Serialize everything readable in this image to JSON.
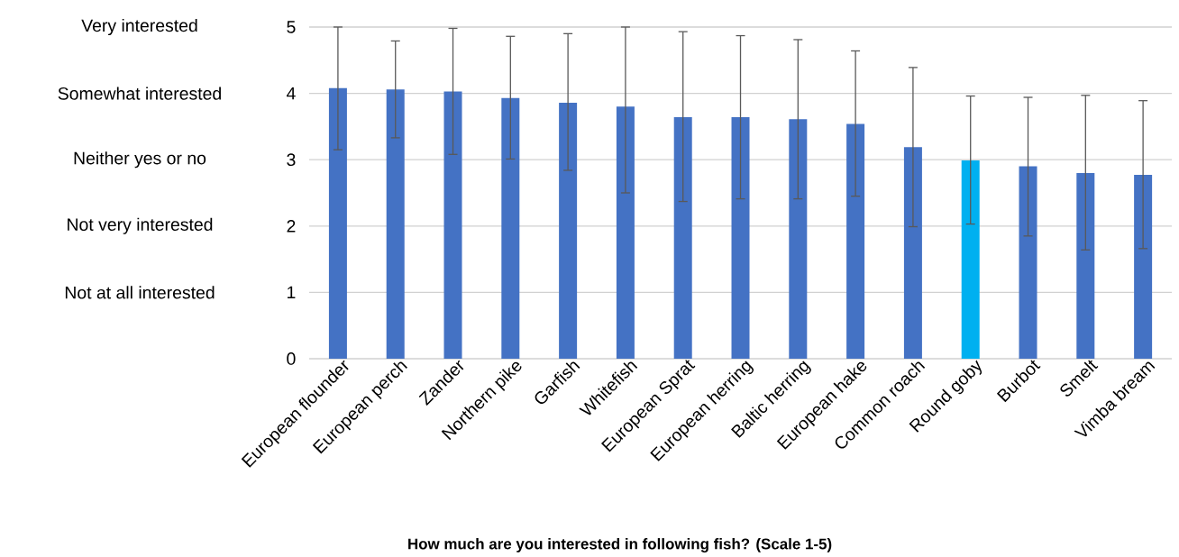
{
  "chart_data": {
    "type": "bar",
    "xlabel": "How much are you interested in following fish? (Scale 1-5)",
    "categories": [
      "European flounder",
      "European perch",
      "Zander",
      "Northern pike",
      "Garfish",
      "Whitefish",
      "European Sprat",
      "European herring",
      "Baltic herring",
      "European hake",
      "Common roach",
      "Round goby",
      "Burbot",
      "Smelt",
      "Vimba bream"
    ],
    "values": [
      4.08,
      4.06,
      4.03,
      3.93,
      3.86,
      3.8,
      3.64,
      3.64,
      3.61,
      3.54,
      3.19,
      2.99,
      2.9,
      2.8,
      2.77
    ],
    "errors": [
      [
        3.15,
        5.0
      ],
      [
        3.33,
        4.79
      ],
      [
        3.08,
        4.98
      ],
      [
        3.01,
        4.86
      ],
      [
        2.84,
        4.9
      ],
      [
        2.5,
        5.0
      ],
      [
        2.37,
        4.93
      ],
      [
        2.41,
        4.87
      ],
      [
        2.41,
        4.81
      ],
      [
        2.45,
        4.64
      ],
      [
        1.99,
        4.39
      ],
      [
        2.03,
        3.96
      ],
      [
        1.85,
        3.94
      ],
      [
        1.64,
        3.97
      ],
      [
        1.66,
        3.89
      ]
    ],
    "colors": [
      "#4472c4",
      "#4472c4",
      "#4472c4",
      "#4472c4",
      "#4472c4",
      "#4472c4",
      "#4472c4",
      "#4472c4",
      "#4472c4",
      "#4472c4",
      "#4472c4",
      "#00b0f0",
      "#4472c4",
      "#4472c4",
      "#4472c4"
    ],
    "ylim": [
      0,
      5
    ],
    "yticks": [
      0,
      1,
      2,
      3,
      4,
      5
    ],
    "annotations": [
      "Very interested",
      "Somewhat interested",
      "Neither yes or no",
      "Not very interested",
      "Not at all interested"
    ],
    "grid": "y"
  }
}
